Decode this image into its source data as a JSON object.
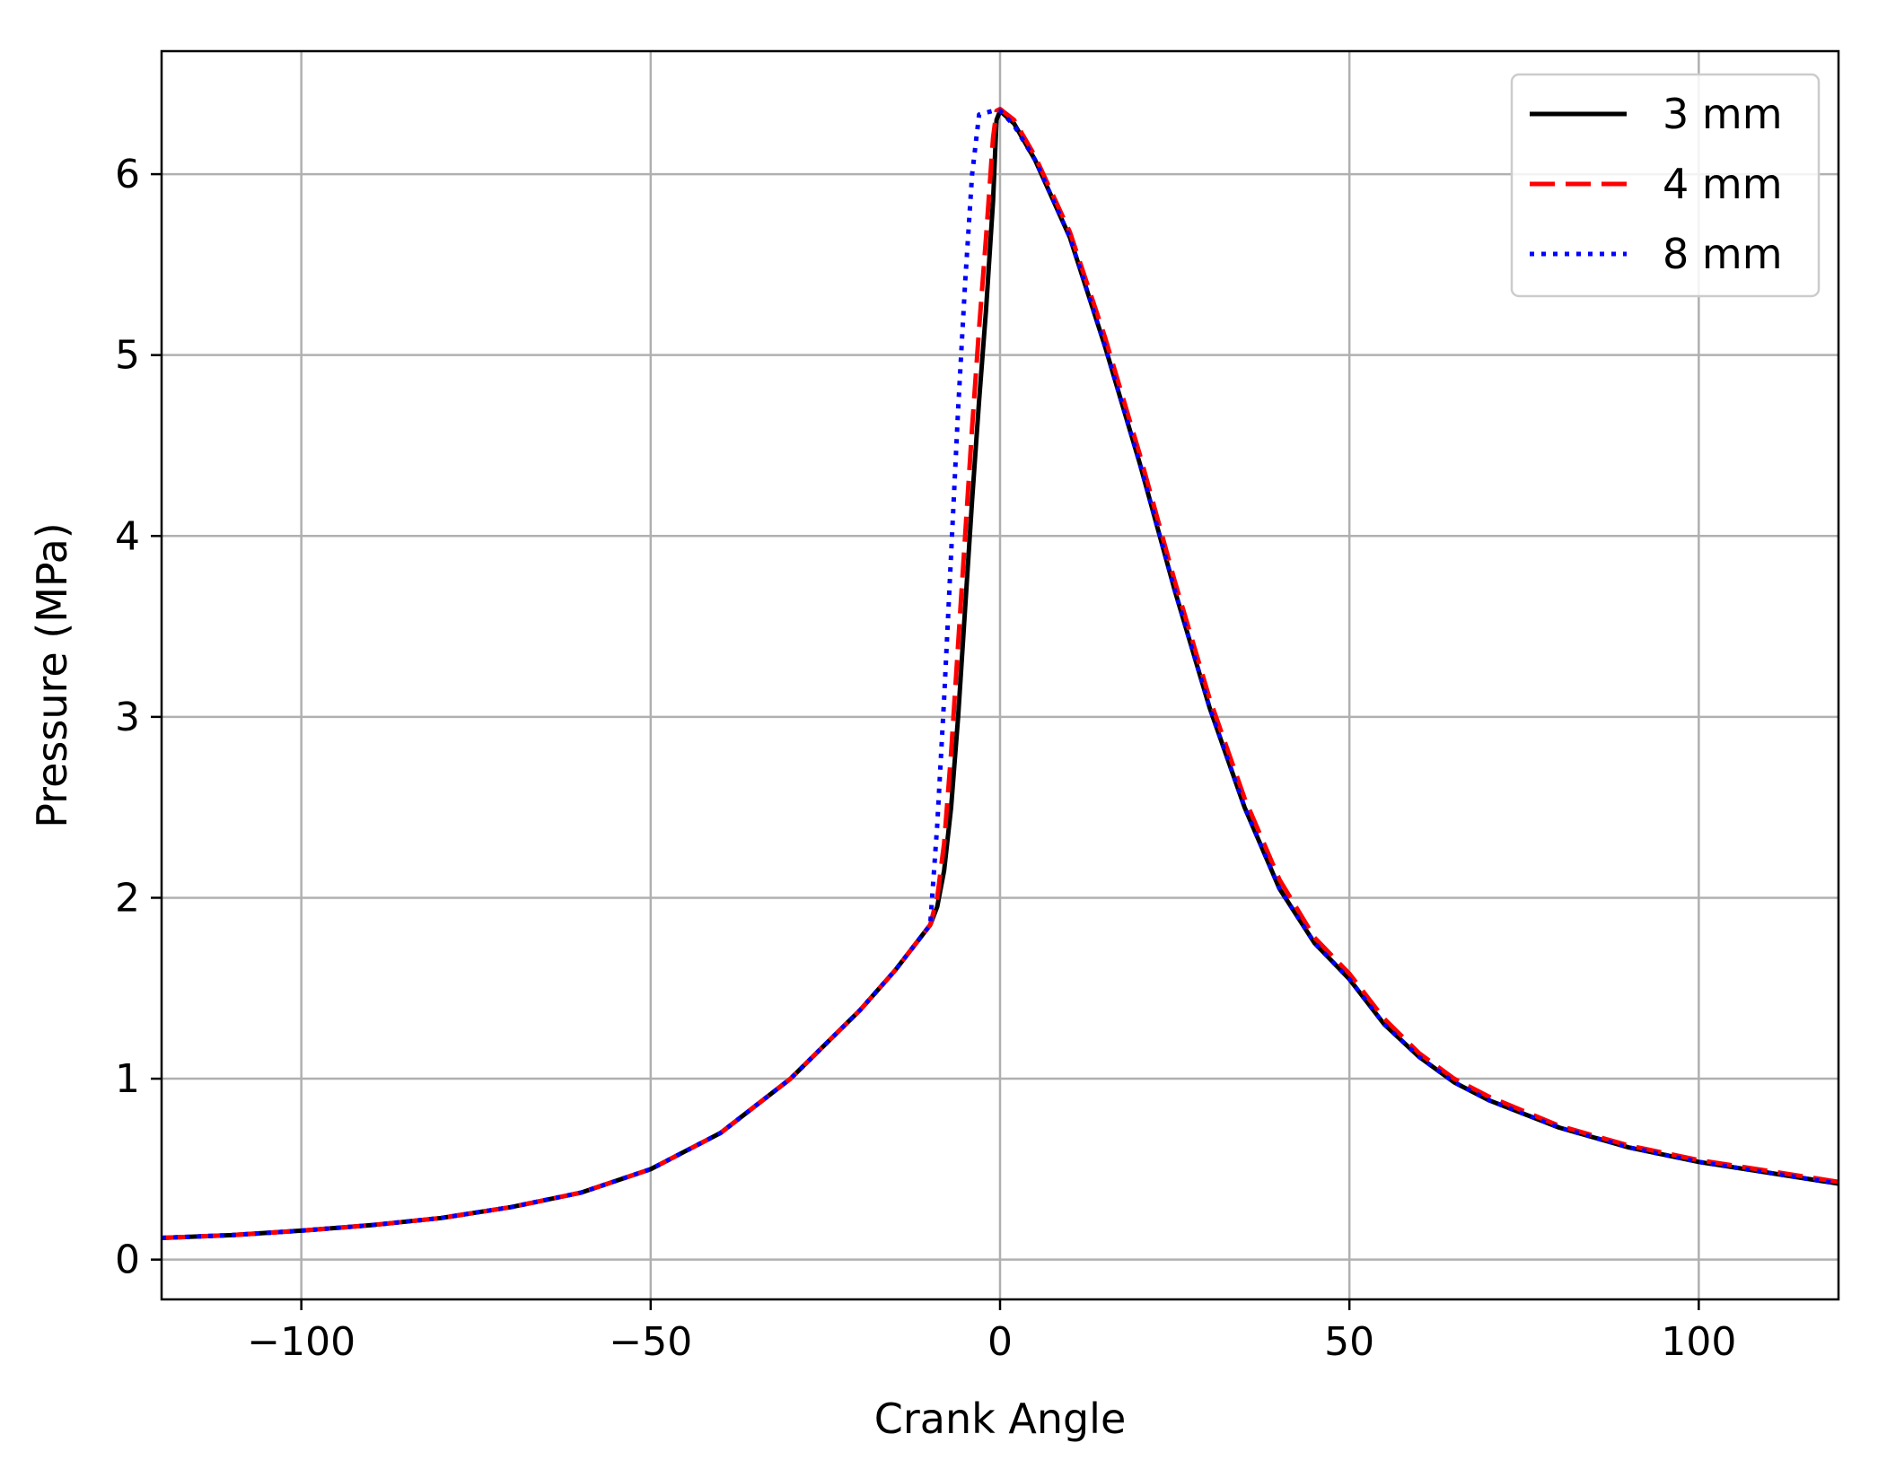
{
  "chart_data": {
    "type": "line",
    "xlabel": "Crank Angle",
    "ylabel": "Pressure (MPa)",
    "xlim": [
      -120,
      120
    ],
    "ylim": [
      -0.22,
      6.68
    ],
    "xticks": [
      -100,
      -50,
      0,
      50,
      100
    ],
    "xtick_labels": [
      "−100",
      "−50",
      "0",
      "50",
      "100"
    ],
    "yticks": [
      0,
      1,
      2,
      3,
      4,
      5,
      6
    ],
    "ytick_labels": [
      "0",
      "1",
      "2",
      "3",
      "4",
      "5",
      "6"
    ],
    "grid": true,
    "legend_position": "top-right",
    "series": [
      {
        "name": "3 mm",
        "color": "#000000",
        "style": "solid",
        "x": [
          -120,
          -110,
          -100,
          -90,
          -80,
          -70,
          -60,
          -50,
          -40,
          -30,
          -20,
          -15,
          -10,
          -9,
          -8,
          -7,
          -6,
          -5,
          -4,
          -3,
          -2,
          -1,
          -0.5,
          0,
          2,
          5,
          10,
          15,
          20,
          25,
          30,
          35,
          40,
          45,
          50,
          55,
          60,
          65,
          70,
          80,
          90,
          100,
          110,
          120
        ],
        "y": [
          0.12,
          0.135,
          0.16,
          0.19,
          0.23,
          0.29,
          0.37,
          0.5,
          0.7,
          1.0,
          1.38,
          1.6,
          1.85,
          1.95,
          2.15,
          2.5,
          3.0,
          3.6,
          4.2,
          4.75,
          5.25,
          5.85,
          6.3,
          6.35,
          6.28,
          6.08,
          5.65,
          5.05,
          4.4,
          3.7,
          3.05,
          2.5,
          2.05,
          1.75,
          1.55,
          1.3,
          1.12,
          0.98,
          0.88,
          0.73,
          0.62,
          0.54,
          0.48,
          0.42
        ]
      },
      {
        "name": "4 mm",
        "color": "#ff0000",
        "style": "dashed",
        "x": [
          -120,
          -110,
          -100,
          -90,
          -80,
          -70,
          -60,
          -50,
          -40,
          -30,
          -20,
          -15,
          -10,
          -9,
          -8,
          -7,
          -6,
          -5,
          -4,
          -3,
          -2,
          -1,
          -0.5,
          0,
          2,
          5,
          10,
          15,
          20,
          25,
          30,
          35,
          40,
          45,
          50,
          55,
          60,
          65,
          70,
          80,
          90,
          100,
          110,
          120
        ],
        "y": [
          0.12,
          0.135,
          0.16,
          0.19,
          0.23,
          0.29,
          0.37,
          0.5,
          0.7,
          1.0,
          1.38,
          1.6,
          1.85,
          2.0,
          2.3,
          2.8,
          3.4,
          4.0,
          4.6,
          5.15,
          5.65,
          6.2,
          6.35,
          6.36,
          6.3,
          6.1,
          5.68,
          5.1,
          4.45,
          3.75,
          3.1,
          2.55,
          2.1,
          1.78,
          1.58,
          1.33,
          1.14,
          1.0,
          0.9,
          0.74,
          0.63,
          0.55,
          0.49,
          0.43
        ]
      },
      {
        "name": "8 mm",
        "color": "#0000ff",
        "style": "dotted",
        "x": [
          -120,
          -110,
          -100,
          -90,
          -80,
          -70,
          -60,
          -50,
          -40,
          -30,
          -20,
          -15,
          -10,
          -9,
          -8,
          -7,
          -6,
          -5,
          -4,
          -3,
          -2,
          -1,
          0,
          2,
          5,
          10,
          15,
          20,
          25,
          30,
          35,
          40,
          45,
          50,
          55,
          60,
          65,
          70,
          80,
          90,
          100,
          110,
          120
        ],
        "y": [
          0.12,
          0.135,
          0.16,
          0.19,
          0.23,
          0.29,
          0.37,
          0.5,
          0.7,
          1.0,
          1.38,
          1.6,
          1.85,
          2.4,
          3.1,
          3.9,
          4.7,
          5.4,
          6.0,
          6.33,
          6.34,
          6.35,
          6.35,
          6.27,
          6.08,
          5.65,
          5.05,
          4.4,
          3.7,
          3.05,
          2.5,
          2.05,
          1.75,
          1.55,
          1.3,
          1.12,
          0.98,
          0.88,
          0.73,
          0.62,
          0.54,
          0.48,
          0.42
        ]
      }
    ]
  }
}
